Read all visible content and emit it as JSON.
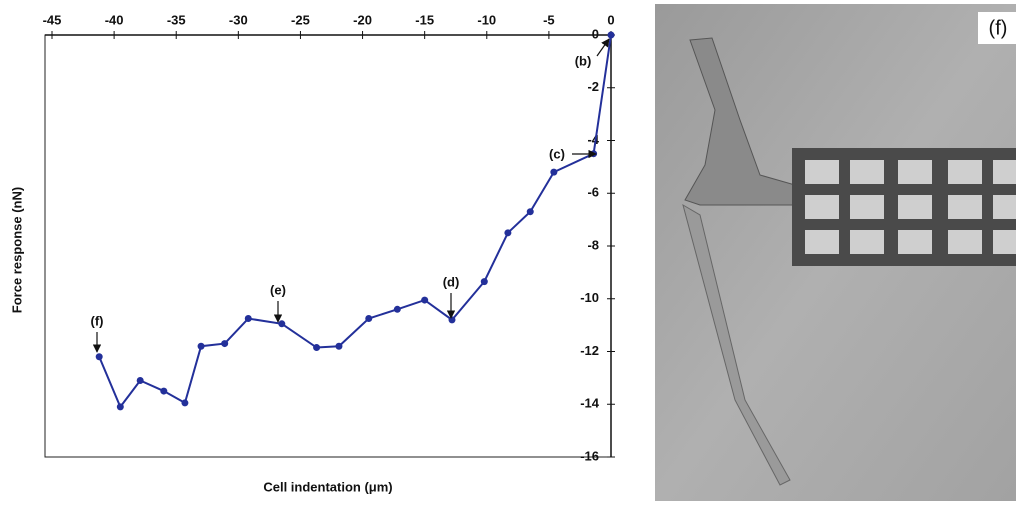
{
  "chart_data": {
    "type": "line",
    "x_label": "Cell indentation (μm)",
    "y_label": "Force response (nN)",
    "x": [
      -41.2,
      -39.5,
      -37.9,
      -36.0,
      -34.3,
      -33.0,
      -31.1,
      -29.2,
      -26.5,
      -23.7,
      -21.9,
      -19.5,
      -17.2,
      -15.0,
      -12.8,
      -10.2,
      -8.3,
      -6.5,
      -4.6,
      -1.4,
      0
    ],
    "series": [
      {
        "color": "#23309a",
        "values": [
          -12.2,
          -14.1,
          -13.1,
          -13.5,
          -13.95,
          -11.8,
          -11.7,
          -10.75,
          -10.95,
          -11.85,
          -11.8,
          -10.75,
          -10.4,
          -10.05,
          -10.8,
          -9.35,
          -7.5,
          -6.7,
          -5.2,
          -4.5,
          0
        ]
      }
    ],
    "xlim": [
      -45,
      0
    ],
    "xticks": [
      -45,
      -40,
      -35,
      -30,
      -25,
      -20,
      -15,
      -10,
      -5,
      0
    ],
    "ylim": [
      -16,
      0
    ],
    "yticks": [
      0,
      -2,
      -4,
      -6,
      -8,
      -10,
      -12,
      -14,
      -16
    ],
    "annotations": [
      "(b)",
      "(c)",
      "(d)",
      "(e)",
      "(f)"
    ]
  },
  "image_label": "(f)"
}
